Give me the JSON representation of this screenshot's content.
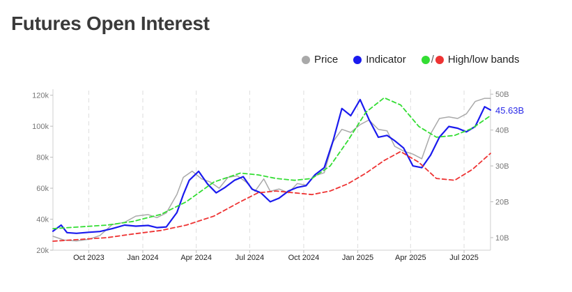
{
  "chart_data": {
    "type": "line",
    "title": "Futures Open Interest",
    "x_start": "2023-08-01",
    "x_end": "2025-08-15",
    "x_ticks": [
      "Oct 2023",
      "Jan 2024",
      "Apr 2024",
      "Jul 2024",
      "Oct 2024",
      "Jan 2025",
      "Apr 2025",
      "Jul 2025"
    ],
    "x_tick_dates": [
      "2023-10-01",
      "2024-01-01",
      "2024-04-01",
      "2024-07-01",
      "2024-10-01",
      "2025-01-01",
      "2025-04-01",
      "2025-07-01"
    ],
    "y_left": {
      "ticks": [
        "20k",
        "40k",
        "60k",
        "80k",
        "100k",
        "120k"
      ],
      "values": [
        20000,
        40000,
        60000,
        80000,
        100000,
        120000
      ],
      "range": [
        20000,
        123000
      ]
    },
    "y_right": {
      "ticks": [
        "10B",
        "20B",
        "30B",
        "40B",
        "50B"
      ],
      "values": [
        10,
        20,
        30,
        40,
        50
      ],
      "range": [
        6.5,
        51
      ]
    },
    "last_value_label": "45.63B",
    "grid": "vertical-dashed",
    "legend_placement": "top-right",
    "legend": [
      {
        "label": "Price",
        "colors": [
          "#a9a9a9"
        ]
      },
      {
        "label": "Indicator",
        "colors": [
          "#1a1aee"
        ]
      },
      {
        "label": "High/low bands",
        "colors": [
          "#33dd33",
          "#ee3333"
        ]
      }
    ],
    "series": [
      {
        "name": "Price",
        "axis": "left",
        "color": "#a9a9a9",
        "x": [
          "2023-08-01",
          "2023-08-20",
          "2023-09-10",
          "2023-10-01",
          "2023-10-20",
          "2023-11-10",
          "2023-12-01",
          "2023-12-20",
          "2024-01-10",
          "2024-01-25",
          "2024-02-10",
          "2024-02-28",
          "2024-03-10",
          "2024-03-25",
          "2024-04-10",
          "2024-04-25",
          "2024-05-10",
          "2024-05-25",
          "2024-06-10",
          "2024-06-25",
          "2024-07-10",
          "2024-07-25",
          "2024-08-05",
          "2024-08-20",
          "2024-09-05",
          "2024-09-20",
          "2024-10-05",
          "2024-10-20",
          "2024-11-05",
          "2024-11-20",
          "2024-12-05",
          "2024-12-20",
          "2025-01-05",
          "2025-01-20",
          "2025-02-05",
          "2025-02-20",
          "2025-03-05",
          "2025-03-20",
          "2025-04-05",
          "2025-04-20",
          "2025-05-05",
          "2025-05-20",
          "2025-06-05",
          "2025-06-20",
          "2025-07-05",
          "2025-07-20",
          "2025-08-05",
          "2025-08-15"
        ],
        "values": [
          29000,
          26500,
          26000,
          27000,
          29500,
          36500,
          38000,
          42000,
          43000,
          41000,
          44000,
          56000,
          67000,
          71000,
          66000,
          64000,
          60000,
          67000,
          68000,
          64000,
          58000,
          66000,
          58000,
          59500,
          57000,
          63000,
          62000,
          68000,
          70000,
          90000,
          98000,
          96000,
          101000,
          104000,
          98000,
          97000,
          87000,
          84000,
          82000,
          79000,
          95000,
          105000,
          106000,
          105000,
          108000,
          116000,
          118000,
          118000
        ]
      },
      {
        "name": "Indicator",
        "axis": "right",
        "color": "#1a1aee",
        "x": [
          "2023-08-01",
          "2023-08-15",
          "2023-08-25",
          "2023-09-10",
          "2023-10-01",
          "2023-10-20",
          "2023-11-10",
          "2023-12-01",
          "2023-12-20",
          "2024-01-10",
          "2024-01-25",
          "2024-02-10",
          "2024-02-28",
          "2024-03-10",
          "2024-03-20",
          "2024-04-05",
          "2024-04-20",
          "2024-05-05",
          "2024-05-20",
          "2024-06-05",
          "2024-06-20",
          "2024-07-05",
          "2024-07-20",
          "2024-08-05",
          "2024-08-20",
          "2024-09-05",
          "2024-09-20",
          "2024-10-05",
          "2024-10-20",
          "2024-11-05",
          "2024-11-20",
          "2024-12-05",
          "2024-12-20",
          "2025-01-05",
          "2025-01-20",
          "2025-02-05",
          "2025-02-20",
          "2025-03-05",
          "2025-03-20",
          "2025-04-05",
          "2025-04-20",
          "2025-05-05",
          "2025-05-20",
          "2025-06-05",
          "2025-06-20",
          "2025-07-05",
          "2025-07-20",
          "2025-08-05",
          "2025-08-15"
        ],
        "values": [
          11.8,
          13.5,
          11.4,
          11.2,
          11.5,
          11.7,
          12.5,
          13.5,
          13.2,
          13.4,
          12.8,
          13.0,
          17.0,
          22.0,
          26.0,
          28.5,
          25.0,
          22.5,
          24.0,
          26.0,
          27.0,
          23.5,
          22.5,
          20.0,
          21.0,
          23.0,
          24.0,
          24.5,
          27.5,
          29.5,
          37.0,
          46.0,
          44.0,
          48.5,
          43.0,
          38.0,
          38.5,
          37.0,
          35.0,
          30.0,
          29.5,
          33.0,
          38.0,
          41.0,
          40.5,
          39.5,
          41.0,
          46.5,
          45.6
        ]
      },
      {
        "name": "High band",
        "axis": "right",
        "color": "#33dd33",
        "dashed": true,
        "x": [
          "2023-08-01",
          "2023-09-15",
          "2023-11-01",
          "2023-12-15",
          "2024-02-01",
          "2024-03-15",
          "2024-05-01",
          "2024-06-15",
          "2024-07-15",
          "2024-08-15",
          "2024-09-15",
          "2024-10-15",
          "2024-11-15",
          "2024-12-15",
          "2025-01-15",
          "2025-02-15",
          "2025-03-15",
          "2025-04-15",
          "2025-05-15",
          "2025-06-15",
          "2025-07-15",
          "2025-08-15"
        ],
        "values": [
          12.5,
          13.0,
          13.5,
          14.5,
          16.5,
          20.0,
          25.5,
          28.0,
          27.5,
          26.5,
          26.0,
          26.5,
          30.0,
          37.0,
          45.0,
          49.0,
          47.0,
          41.0,
          38.0,
          38.5,
          40.5,
          44.0
        ]
      },
      {
        "name": "Low band",
        "axis": "right",
        "color": "#ee3333",
        "dashed": true,
        "x": [
          "2023-08-01",
          "2023-09-15",
          "2023-11-01",
          "2023-12-15",
          "2024-02-01",
          "2024-03-15",
          "2024-05-01",
          "2024-06-15",
          "2024-07-15",
          "2024-08-15",
          "2024-09-15",
          "2024-10-15",
          "2024-11-15",
          "2024-12-15",
          "2025-01-15",
          "2025-02-15",
          "2025-03-15",
          "2025-04-15",
          "2025-05-15",
          "2025-06-15",
          "2025-07-15",
          "2025-08-15"
        ],
        "values": [
          9.0,
          9.5,
          10.0,
          11.0,
          12.0,
          13.5,
          16.0,
          20.0,
          22.5,
          23.0,
          22.5,
          22.0,
          23.0,
          25.0,
          28.0,
          31.5,
          34.0,
          31.0,
          26.5,
          26.0,
          29.0,
          33.5
        ]
      }
    ]
  }
}
